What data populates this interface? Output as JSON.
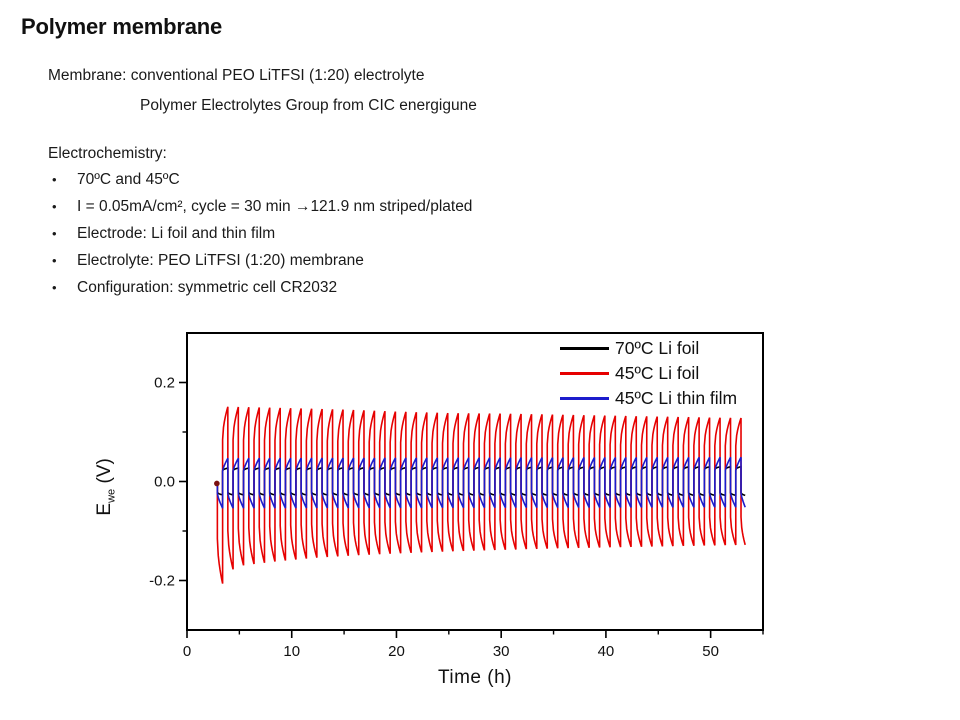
{
  "slide": {
    "title": "Polymer membrane",
    "bullet_char": "•",
    "membrane_line1": "Membrane: conventional PEO LiTFSI (1:20) electrolyte",
    "membrane_line2": "Polymer Electrolytes Group from CIC energigune",
    "electrochemistry_heading": "Electrochemistry:",
    "bullets": [
      "70ºC and 45ºC",
      "I = 0.05mA/cm², cycle = 30 min →121.9 nm striped/plated",
      "Electrode: Li foil and thin film",
      "Electrolyte: PEO LiTFSI (1:20) membrane",
      "Configuration: symmetric cell CR2032"
    ]
  },
  "chart_data": {
    "type": "line",
    "title": "",
    "xlabel": "Time (h)",
    "ylabel": {
      "main": "E",
      "sub": "we",
      "unit": " (V)"
    },
    "xlim": [
      0,
      55
    ],
    "ylim": [
      -0.3,
      0.3
    ],
    "xtick_values": [
      0,
      10,
      20,
      30,
      40,
      50
    ],
    "xtick_labels": [
      "0",
      "10",
      "20",
      "30",
      "40",
      "50"
    ],
    "xticks_minor": [
      5,
      15,
      25,
      35,
      45,
      55
    ],
    "ytick_values": [
      0.2,
      0.0,
      -0.2
    ],
    "ytick_labels": [
      "0.2",
      "0.0",
      "-0.2"
    ],
    "yticks_minor": [
      0.1,
      -0.1
    ],
    "grid": false,
    "legend_position": "top-right-inside",
    "axis_color": "#000000",
    "waveform": {
      "type": "galvanostatic square-wave cycling",
      "period_h": 1.0,
      "half_cycle_min": 30,
      "t_start_h": 2.9,
      "t_end_h": 53.3,
      "first_half": "negative"
    },
    "series": [
      {
        "name": "70ºC Li foil",
        "color": "#000000",
        "base_frac": 0.8,
        "shape_pow": 0.45,
        "pos_envelope": [
          [
            2.9,
            0.027
          ],
          [
            53.3,
            0.03
          ]
        ],
        "neg_envelope": [
          [
            2.9,
            0.027
          ],
          [
            53.3,
            0.028
          ]
        ]
      },
      {
        "name": "45ºC Li foil",
        "color": "#e60000",
        "base_frac": 0.56,
        "shape_pow": 0.55,
        "pos_envelope": [
          [
            3.4,
            0.151
          ],
          [
            8,
            0.149
          ],
          [
            15,
            0.145
          ],
          [
            20,
            0.141
          ],
          [
            25,
            0.138
          ],
          [
            30,
            0.137
          ],
          [
            35,
            0.135
          ],
          [
            40,
            0.133
          ],
          [
            45,
            0.131
          ],
          [
            50,
            0.129
          ],
          [
            53.3,
            0.128
          ]
        ],
        "neg_envelope": [
          [
            2.9,
            0.215
          ],
          [
            3.9,
            0.18
          ],
          [
            4.9,
            0.17
          ],
          [
            8,
            0.162
          ],
          [
            12,
            0.154
          ],
          [
            16,
            0.149
          ],
          [
            20,
            0.145
          ],
          [
            25,
            0.141
          ],
          [
            30,
            0.138
          ],
          [
            35,
            0.135
          ],
          [
            40,
            0.133
          ],
          [
            45,
            0.131
          ],
          [
            50,
            0.129
          ],
          [
            53.3,
            0.128
          ]
        ]
      },
      {
        "name": "45ºC Li thin film",
        "color": "#1c1ccc",
        "base_frac": 0.45,
        "shape_pow": 0.75,
        "pos_envelope": [
          [
            2.9,
            0.047
          ],
          [
            53.3,
            0.049
          ]
        ],
        "neg_envelope": [
          [
            2.9,
            0.054
          ],
          [
            53.3,
            0.052
          ]
        ]
      }
    ],
    "start_marker": {
      "t_h": 2.85,
      "e_v": -0.004,
      "color": "#7a1010"
    }
  }
}
